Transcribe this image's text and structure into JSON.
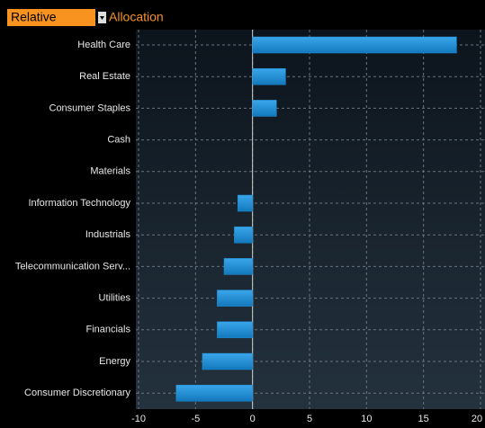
{
  "header": {
    "dropdown": "Relative",
    "title": "Allocation"
  },
  "chart_data": {
    "type": "barh",
    "categories": [
      "Health Care",
      "Real Estate",
      "Consumer Staples",
      "Cash",
      "Materials",
      "Information Technology",
      "Industrials",
      "Telecommunication Serv...",
      "Utilities",
      "Financials",
      "Energy",
      "Consumer Discretionary"
    ],
    "values": [
      17.9,
      2.9,
      2.1,
      0,
      0,
      -1.3,
      -1.6,
      -2.5,
      -3.1,
      -3.1,
      -4.4,
      -6.7
    ],
    "color": "#1e8fd8",
    "xlim": [
      -10,
      20
    ],
    "xticks": [
      -10,
      -5,
      0,
      5,
      10,
      15,
      20
    ],
    "grid": true
  }
}
